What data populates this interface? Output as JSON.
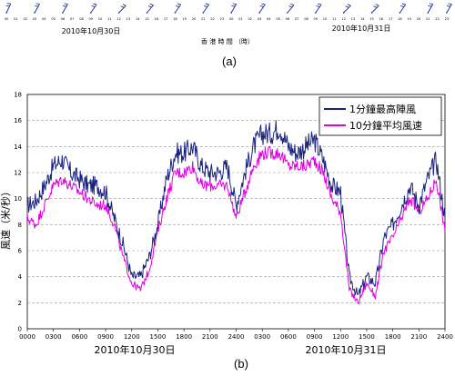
{
  "panel_a": {
    "label": "(a)",
    "axis_title": "香 港 時 間 （時）",
    "date_labels": [
      "2010年10月30日",
      "2010年10月31日"
    ],
    "hour_ticks": [
      "00",
      "01",
      "02",
      "03",
      "04",
      "05",
      "06",
      "07",
      "08",
      "09",
      "10",
      "11",
      "12",
      "13",
      "14",
      "15",
      "16",
      "17",
      "18",
      "19",
      "20",
      "21",
      "22",
      "23",
      "00",
      "01",
      "02",
      "03",
      "04",
      "05",
      "06",
      "07",
      "08",
      "09",
      "10",
      "11",
      "12",
      "13",
      "14",
      "15",
      "16",
      "17",
      "18",
      "19",
      "20",
      "21",
      "22",
      "23"
    ],
    "barbs": [
      {
        "hour": 0,
        "direction_deg": 65
      },
      {
        "hour": 3,
        "direction_deg": 60
      },
      {
        "hour": 6,
        "direction_deg": 60
      },
      {
        "hour": 9,
        "direction_deg": 55
      },
      {
        "hour": 12,
        "direction_deg": 45
      },
      {
        "hour": 15,
        "direction_deg": 50
      },
      {
        "hour": 18,
        "direction_deg": 55
      },
      {
        "hour": 21,
        "direction_deg": 55
      },
      {
        "hour": 24,
        "direction_deg": 60
      },
      {
        "hour": 27,
        "direction_deg": 55
      },
      {
        "hour": 30,
        "direction_deg": 50
      },
      {
        "hour": 33,
        "direction_deg": 55
      },
      {
        "hour": 36,
        "direction_deg": 45
      },
      {
        "hour": 39,
        "direction_deg": 45
      },
      {
        "hour": 42,
        "direction_deg": 55
      },
      {
        "hour": 45,
        "direction_deg": 60
      },
      {
        "hour": 47,
        "direction_deg": 60
      }
    ],
    "barb_color": "#1a2a8c"
  },
  "panel_b": {
    "label": "(b)"
  },
  "chart_data": {
    "type": "line",
    "ylabel": "風速（米/秒）",
    "ylim": [
      0,
      18
    ],
    "yticks": [
      "0",
      "2",
      "4",
      "6",
      "8",
      "10",
      "12",
      "14",
      "16",
      "18"
    ],
    "xlim": [
      0,
      48
    ],
    "xtick_labels": [
      "0000",
      "0300",
      "0600",
      "0900",
      "1200",
      "1500",
      "1800",
      "2100",
      "2400",
      "0300",
      "0600",
      "0900",
      "1200",
      "1500",
      "1800",
      "2100",
      "2400"
    ],
    "date_labels": [
      "2010年10月30日",
      "2010年10月31日"
    ],
    "grid": "horizontal dashed",
    "legend_position": "top-right",
    "colors": {
      "gust": "#1a237e",
      "mean": "#e000e0"
    },
    "x": [
      0,
      1,
      2,
      3,
      4,
      5,
      6,
      7,
      8,
      9,
      10,
      11,
      12,
      13,
      14,
      15,
      16,
      17,
      18,
      19,
      20,
      21,
      22,
      23,
      24,
      25,
      26,
      27,
      28,
      29,
      30,
      31,
      32,
      33,
      34,
      35,
      36,
      37,
      38,
      39,
      40,
      41,
      42,
      43,
      44,
      45,
      46,
      47,
      48
    ],
    "series": [
      {
        "name": "1分鐘最高陣風",
        "values": [
          9.5,
          9.8,
          11.0,
          12.5,
          13.0,
          12.0,
          11.5,
          11.0,
          11.0,
          10.5,
          8.5,
          6.5,
          4.0,
          4.0,
          5.5,
          8.0,
          11.5,
          13.5,
          13.5,
          14.0,
          12.5,
          12.0,
          12.0,
          12.5,
          9.5,
          12.0,
          14.0,
          15.0,
          15.0,
          15.5,
          14.0,
          13.5,
          14.0,
          14.5,
          13.0,
          11.0,
          10.5,
          4.0,
          2.5,
          4.0,
          3.5,
          7.0,
          8.0,
          9.5,
          11.0,
          9.5,
          11.5,
          13.0,
          8.5
        ]
      },
      {
        "name": "10分鐘平均風速",
        "values": [
          8.5,
          8.0,
          9.5,
          11.0,
          11.5,
          11.0,
          10.5,
          10.0,
          9.5,
          9.5,
          8.0,
          5.5,
          3.5,
          3.0,
          4.5,
          7.5,
          10.0,
          12.0,
          12.0,
          12.5,
          11.0,
          11.0,
          11.0,
          11.0,
          8.5,
          10.5,
          12.5,
          13.5,
          13.5,
          13.5,
          12.5,
          12.5,
          12.5,
          13.0,
          12.0,
          10.0,
          9.0,
          3.0,
          2.0,
          3.5,
          2.5,
          6.0,
          7.0,
          8.5,
          10.0,
          9.0,
          10.0,
          11.5,
          7.5
        ]
      }
    ]
  }
}
